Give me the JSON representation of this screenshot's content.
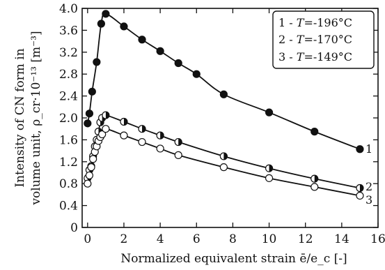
{
  "chart_data": {
    "type": "line",
    "title": "",
    "xlabel": "Normalized equivalent strain ē/e_c [-]",
    "ylabel_line1": "Intensity of CN form in",
    "ylabel_line2": "volume unit, ρ_cr·10⁻¹³ [m⁻³]",
    "xlim": [
      -0.3,
      16
    ],
    "ylim": [
      0,
      4.0
    ],
    "x_ticks": [
      0,
      2,
      4,
      6,
      8,
      10,
      12,
      14,
      16
    ],
    "y_ticks": [
      0,
      0.4,
      0.8,
      1.2,
      1.6,
      2.0,
      2.4,
      2.8,
      3.2,
      3.6,
      4.0
    ],
    "x_tick_labels": [
      "0",
      "2",
      "4",
      "6",
      "8",
      "10",
      "12",
      "14",
      "16"
    ],
    "y_tick_labels": [
      "0",
      "0.4",
      "0.8",
      "1.2",
      "1.6",
      "2.0",
      "2.4",
      "2.8",
      "3.2",
      "3.6",
      "4.0"
    ],
    "legend_position": "top-right",
    "grid": false,
    "series": [
      {
        "name": "1 - T=-196°C",
        "end_label": "1",
        "marker": "filled",
        "x": [
          0.0,
          0.1,
          0.25,
          0.5,
          0.75,
          1.0,
          2.0,
          3.0,
          4.0,
          5.0,
          6.0,
          7.5,
          10.0,
          12.5,
          15.0
        ],
        "y": [
          1.9,
          2.08,
          2.48,
          3.02,
          3.72,
          3.9,
          3.67,
          3.43,
          3.22,
          3.0,
          2.8,
          2.43,
          2.1,
          1.75,
          1.43
        ]
      },
      {
        "name": "2 - T=-170°C",
        "end_label": "2",
        "marker": "half",
        "x": [
          0.0,
          0.1,
          0.2,
          0.3,
          0.4,
          0.5,
          0.6,
          0.7,
          0.8,
          1.0,
          2.0,
          3.0,
          4.0,
          5.0,
          7.5,
          10.0,
          12.5,
          15.0
        ],
        "y": [
          0.9,
          1.05,
          1.12,
          1.3,
          1.48,
          1.6,
          1.75,
          1.92,
          2.0,
          2.05,
          1.93,
          1.8,
          1.68,
          1.56,
          1.3,
          1.08,
          0.89,
          0.72
        ]
      },
      {
        "name": "3 - T=-149°C",
        "end_label": "3",
        "marker": "open",
        "x": [
          0.0,
          0.1,
          0.2,
          0.3,
          0.4,
          0.5,
          0.6,
          0.7,
          0.8,
          1.0,
          2.0,
          3.0,
          4.0,
          5.0,
          7.5,
          10.0,
          12.5,
          15.0
        ],
        "y": [
          0.8,
          0.95,
          1.1,
          1.25,
          1.38,
          1.48,
          1.58,
          1.65,
          1.7,
          1.8,
          1.68,
          1.56,
          1.44,
          1.32,
          1.1,
          0.9,
          0.74,
          0.58
        ]
      }
    ],
    "legend": {
      "entries": [
        {
          "prefix": "1 - ",
          "var": "T",
          "value": "=-196°C"
        },
        {
          "prefix": "2 - ",
          "var": "T",
          "value": "=-170°C"
        },
        {
          "prefix": "3 - ",
          "var": "T",
          "value": "=-149°C"
        }
      ]
    }
  }
}
